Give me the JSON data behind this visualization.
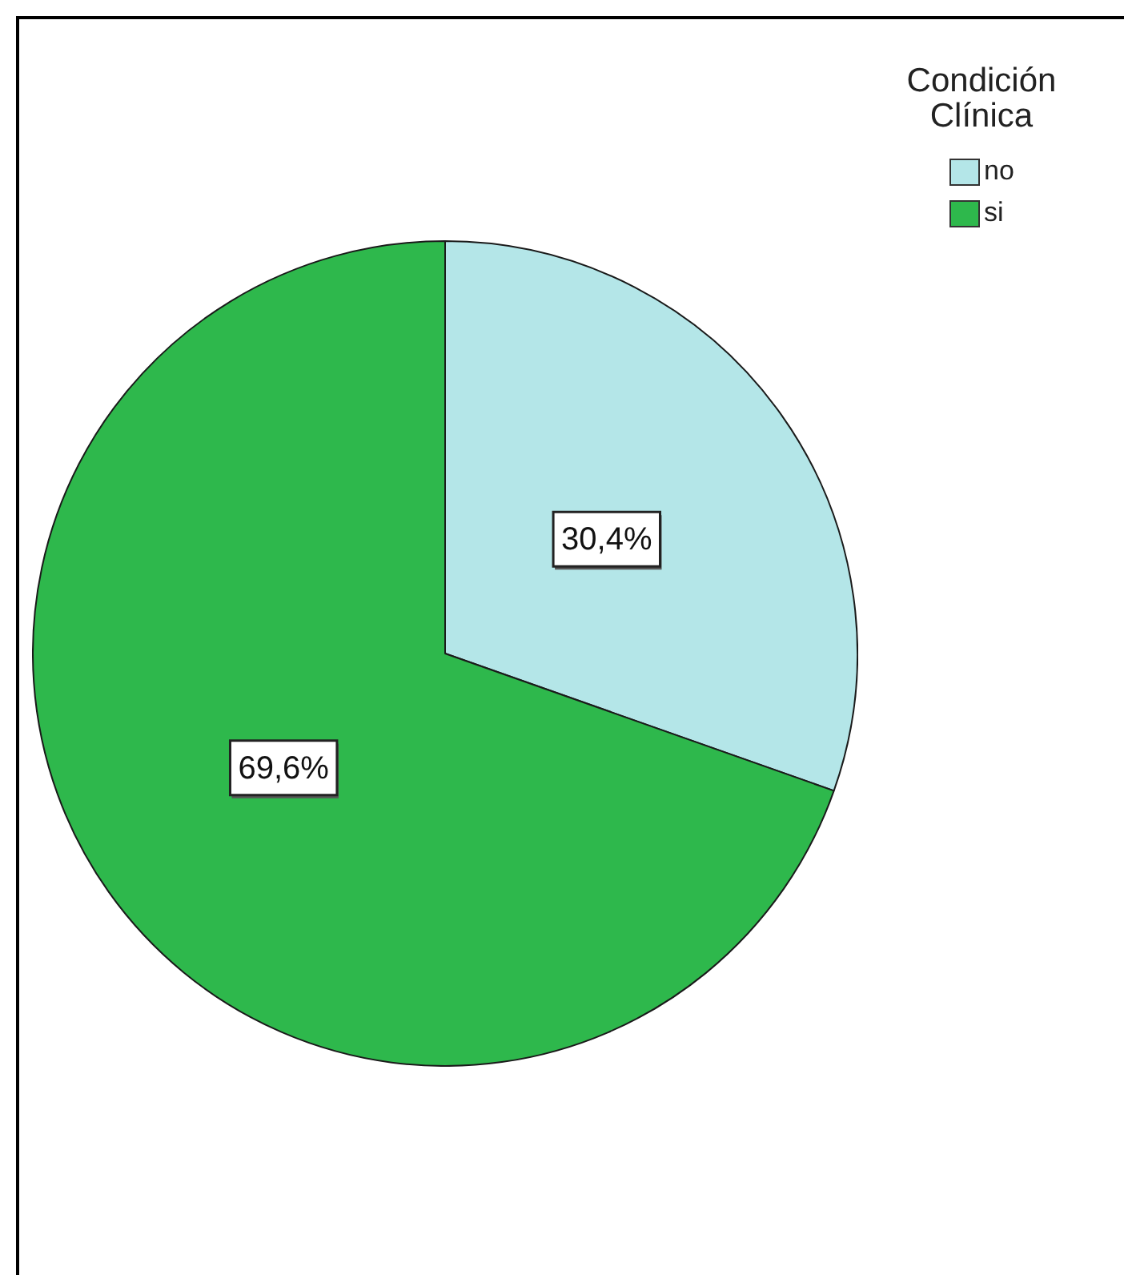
{
  "chart_data": {
    "type": "pie",
    "categories": [
      "no",
      "si"
    ],
    "values": [
      30.4,
      69.6
    ],
    "colors": [
      "#b4e6e8",
      "#2eb84c"
    ],
    "legend_title": "Condición Clínica",
    "legend": "top right",
    "value_labels": [
      "30,4%",
      "69,6%"
    ]
  }
}
